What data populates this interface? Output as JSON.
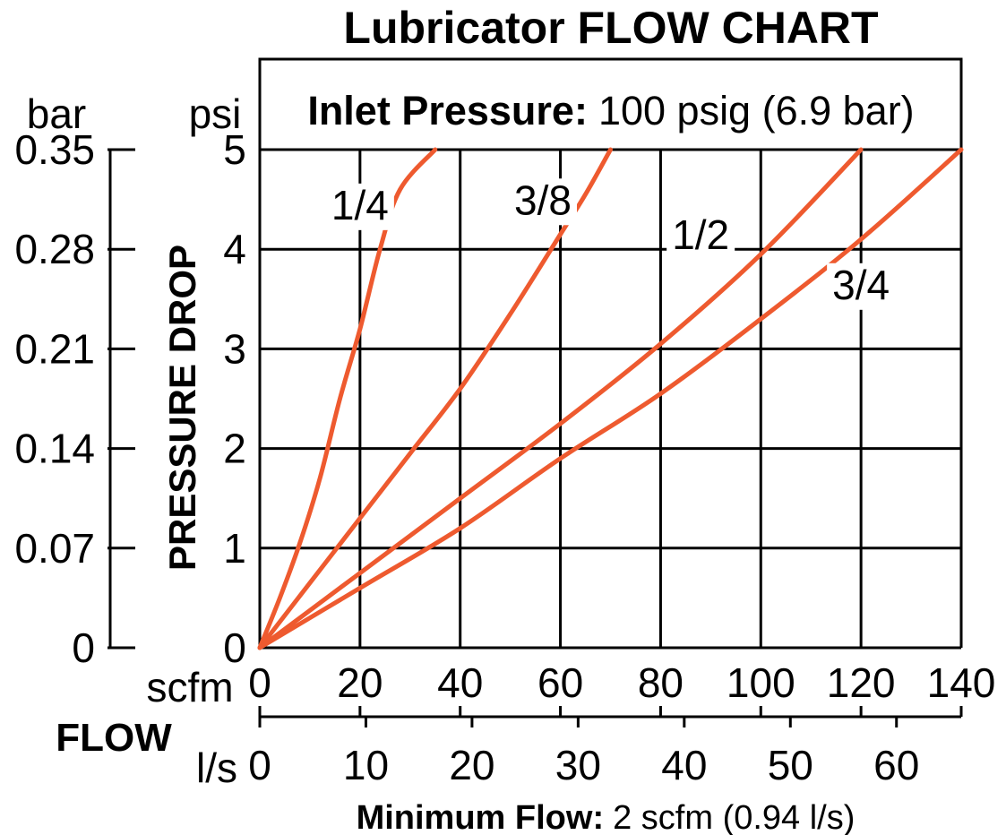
{
  "chart_data": {
    "type": "line",
    "title": "Lubricator FLOW CHART",
    "subtitle": {
      "label": "Inlet Pressure:",
      "value": "100 psig (6.9 bar)"
    },
    "footnote": {
      "label": "Minimum Flow:",
      "value": "2 scfm (0.94 l/s)"
    },
    "ylabel": "PRESSURE DROP",
    "xlabel": "FLOW",
    "y_units": {
      "primary": "psi",
      "secondary": "bar"
    },
    "x_units": {
      "primary": "scfm",
      "secondary": "l/s"
    },
    "xlim": [
      0,
      140
    ],
    "ylim": [
      0,
      5
    ],
    "x_ticks": [
      "0",
      "20",
      "40",
      "60",
      "80",
      "100",
      "120",
      "140"
    ],
    "x_secondary_ticks": [
      {
        "value": 0,
        "label": "0"
      },
      {
        "value": 10,
        "label": "10"
      },
      {
        "value": 20,
        "label": "20"
      },
      {
        "value": 30,
        "label": "30"
      },
      {
        "value": 40,
        "label": "40"
      },
      {
        "value": 50,
        "label": "50"
      },
      {
        "value": 60,
        "label": "60"
      }
    ],
    "y_ticks": [
      "0",
      "1",
      "2",
      "3",
      "4",
      "5"
    ],
    "y_secondary_ticks": [
      "0",
      "0.07",
      "0.14",
      "0.21",
      "0.28",
      "0.35"
    ],
    "grid": true,
    "series_color": "#ee5a2f",
    "series": [
      {
        "name": "1/4",
        "label_at": [
          20,
          4.3
        ],
        "points": [
          [
            0,
            0
          ],
          [
            4,
            0.5
          ],
          [
            8,
            1.05
          ],
          [
            12,
            1.7
          ],
          [
            16,
            2.5
          ],
          [
            20,
            3.2
          ],
          [
            24,
            4.0
          ],
          [
            28,
            4.6
          ],
          [
            35,
            5.0
          ]
        ]
      },
      {
        "name": "3/8",
        "label_at": [
          56.5,
          4.35
        ],
        "points": [
          [
            0,
            0
          ],
          [
            10,
            0.65
          ],
          [
            20,
            1.3
          ],
          [
            30,
            1.95
          ],
          [
            40,
            2.6
          ],
          [
            50,
            3.35
          ],
          [
            60,
            4.15
          ],
          [
            65,
            4.55
          ],
          [
            70,
            5.0
          ]
        ]
      },
      {
        "name": "1/2",
        "label_at": [
          88,
          4.0
        ],
        "points": [
          [
            0,
            0
          ],
          [
            20,
            0.75
          ],
          [
            40,
            1.5
          ],
          [
            60,
            2.25
          ],
          [
            80,
            3.05
          ],
          [
            100,
            3.95
          ],
          [
            120,
            5.0
          ]
        ]
      },
      {
        "name": "3/4",
        "label_at": [
          120,
          3.5
        ],
        "points": [
          [
            0,
            0
          ],
          [
            20,
            0.6
          ],
          [
            40,
            1.2
          ],
          [
            60,
            1.9
          ],
          [
            80,
            2.55
          ],
          [
            100,
            3.3
          ],
          [
            120,
            4.1
          ],
          [
            140,
            5.0
          ]
        ]
      }
    ]
  }
}
